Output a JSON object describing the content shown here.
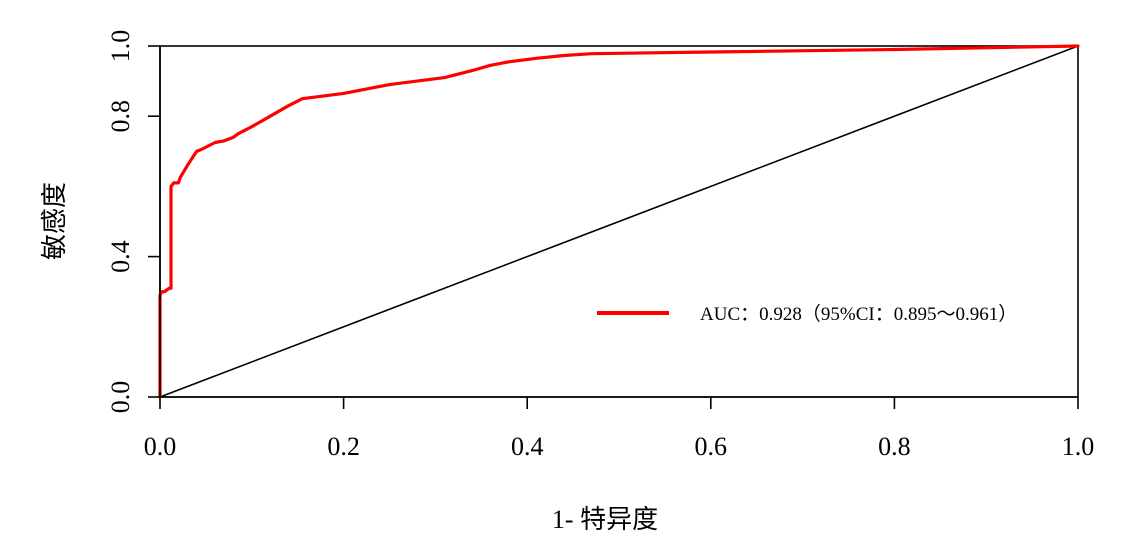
{
  "chart_data": {
    "type": "line",
    "title": "",
    "xlabel": "1- 特异度",
    "ylabel": "敏感度",
    "xlim": [
      0,
      1
    ],
    "ylim": [
      0,
      1
    ],
    "x_ticks": [
      "0.0",
      "0.2",
      "0.4",
      "0.6",
      "0.8",
      "1.0"
    ],
    "x_tick_values": [
      0,
      0.2,
      0.4,
      0.6,
      0.8,
      1.0
    ],
    "y_ticks": [
      "0.0",
      "0.4",
      "0.8",
      "1.0"
    ],
    "y_tick_values": [
      0,
      0.4,
      0.8,
      1.0
    ],
    "grid": false,
    "legend_position": "bottom-right",
    "series": [
      {
        "name": "AUC：0.928（95%CI：0.895～0.961）",
        "color": "#ff0000",
        "x": [
          0,
          0,
          0.002,
          0.005,
          0.01,
          0.012,
          0.012,
          0.015,
          0.02,
          0.022,
          0.03,
          0.04,
          0.045,
          0.06,
          0.07,
          0.08,
          0.085,
          0.1,
          0.12,
          0.14,
          0.155,
          0.2,
          0.25,
          0.31,
          0.34,
          0.36,
          0.38,
          0.41,
          0.44,
          0.47,
          0.6,
          0.8,
          1.0
        ],
        "y": [
          0,
          0.29,
          0.3,
          0.3,
          0.31,
          0.31,
          0.6,
          0.61,
          0.61,
          0.625,
          0.66,
          0.7,
          0.705,
          0.725,
          0.73,
          0.74,
          0.75,
          0.77,
          0.8,
          0.83,
          0.85,
          0.865,
          0.89,
          0.91,
          0.93,
          0.945,
          0.955,
          0.965,
          0.973,
          0.978,
          0.983,
          0.99,
          1.0
        ]
      },
      {
        "name": "",
        "color": "#000000",
        "x": [
          0,
          1
        ],
        "y": [
          0,
          1
        ]
      }
    ]
  }
}
